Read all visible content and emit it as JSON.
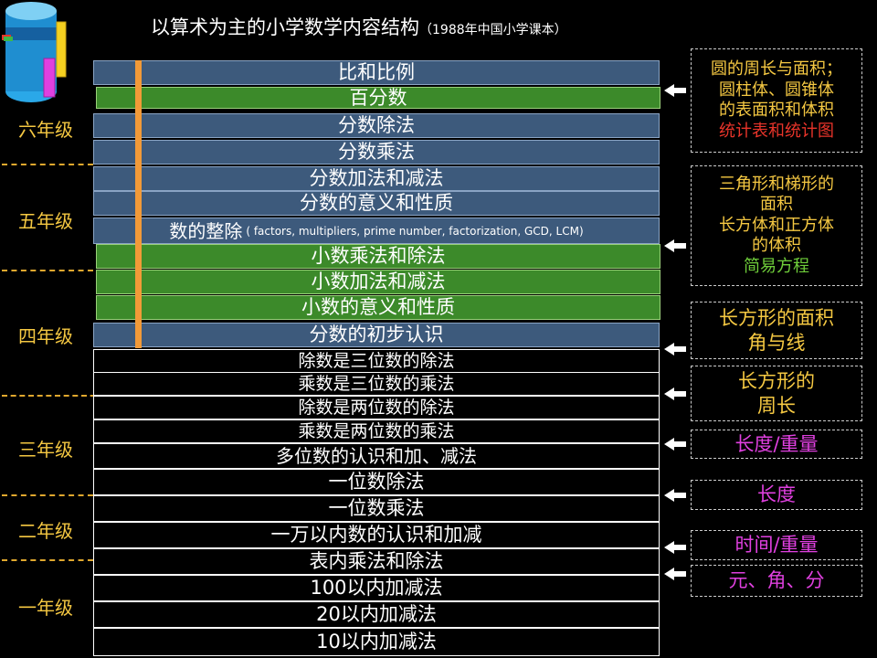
{
  "title": {
    "main": "以算术为主的小学数学内容结构",
    "note": "（1988年中国小学课本）"
  },
  "grades": [
    "六年级",
    "五年级",
    "四年级",
    "三年级",
    "二年级",
    "一年级"
  ],
  "topics": [
    {
      "text": "比和比例",
      "style": "blue"
    },
    {
      "text": "百分数",
      "style": "green"
    },
    {
      "text": "分数除法",
      "style": "blue"
    },
    {
      "text": "分数乘法",
      "style": "blue"
    },
    {
      "text": "分数加法和减法",
      "style": "blue"
    },
    {
      "text": "分数的意义和性质",
      "style": "blue"
    },
    {
      "text": "数的整除",
      "sub": "( factors, multipliers, prime number, factorization, GCD, LCM)",
      "style": "blue"
    },
    {
      "text": "小数乘法和除法",
      "style": "green"
    },
    {
      "text": "小数加法和减法",
      "style": "green"
    },
    {
      "text": "小数的意义和性质",
      "style": "green"
    },
    {
      "text": "分数的初步认识",
      "style": "blue"
    },
    {
      "text": "除数是三位数的除法",
      "style": "black"
    },
    {
      "text": "乘数是三位数的乘法",
      "style": "black"
    },
    {
      "text": "除数是两位数的除法",
      "style": "black"
    },
    {
      "text": "乘数是两位数的乘法",
      "style": "black"
    },
    {
      "text": "多位数的认识和加、减法",
      "style": "black"
    },
    {
      "text": "一位数除法",
      "style": "black"
    },
    {
      "text": "一位数乘法",
      "style": "black"
    },
    {
      "text": "一万以内数的认识和加减",
      "style": "black"
    },
    {
      "text": "表内乘法和除法",
      "style": "black"
    },
    {
      "text": "100以内加减法",
      "style": "black"
    },
    {
      "text": "20以内加减法",
      "style": "black"
    },
    {
      "text": "10以内加减法",
      "style": "black"
    }
  ],
  "boxes": [
    {
      "lines": [
        {
          "text": "圆的周长与面积；",
          "color": "#f5c842"
        },
        {
          "text": "圆柱体、圆锥体",
          "color": "#f5c842"
        },
        {
          "text": "的表面积和体积",
          "color": "#f5c842"
        },
        {
          "text": "统计表和统计图",
          "color": "#e8342a"
        }
      ]
    },
    {
      "lines": [
        {
          "text": "三角形和梯形的",
          "color": "#f5c842"
        },
        {
          "text": "面积",
          "color": "#f5c842"
        },
        {
          "text": "长方体和正方体",
          "color": "#f5c842"
        },
        {
          "text": "的体积",
          "color": "#f5c842"
        },
        {
          "text": "简易方程",
          "color": "#6fce3a"
        }
      ]
    },
    {
      "lines": [
        {
          "text": "长方形的面积",
          "color": "#f5c842"
        },
        {
          "text": "角与线",
          "color": "#f5c842"
        }
      ]
    },
    {
      "lines": [
        {
          "text": "长方形的",
          "color": "#f5c842"
        },
        {
          "text": "周长",
          "color": "#f5c842"
        }
      ]
    },
    {
      "lines": [
        {
          "text": "长度/重量",
          "color": "#e040e0"
        }
      ]
    },
    {
      "lines": [
        {
          "text": "长度",
          "color": "#e040e0"
        }
      ]
    },
    {
      "lines": [
        {
          "text": "时间/重量",
          "color": "#e040e0"
        }
      ]
    },
    {
      "lines": [
        {
          "text": "元、角、分",
          "color": "#e040e0"
        }
      ]
    }
  ]
}
